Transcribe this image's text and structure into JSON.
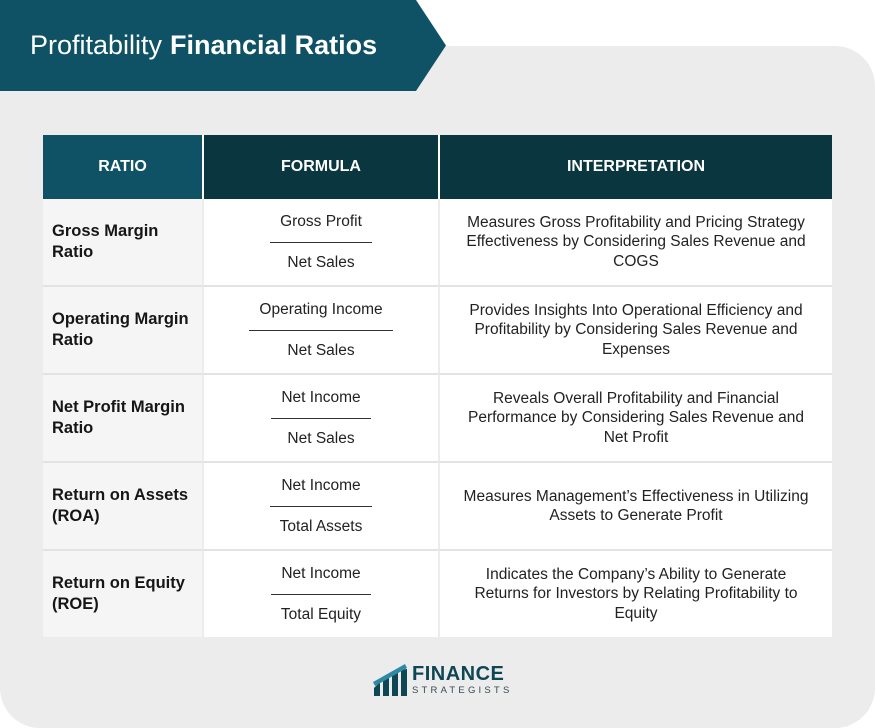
{
  "header": {
    "title_light": "Profitability",
    "title_bold": "Financial Ratios"
  },
  "table": {
    "columns": [
      "RATIO",
      "FORMULA",
      "INTERPRETATION"
    ],
    "rows": [
      {
        "ratio": "Gross Margin Ratio",
        "numerator": "Gross Profit",
        "denominator": "Net Sales",
        "interpretation": "Measures Gross Profitability and Pricing Strategy Effectiveness by Considering Sales Revenue and COGS"
      },
      {
        "ratio": "Operating Margin Ratio",
        "numerator": "Operating Income",
        "denominator": "Net Sales",
        "interpretation": "Provides Insights Into Operational Efficiency and Profitability by Considering Sales Revenue and Expenses"
      },
      {
        "ratio": "Net Profit Margin Ratio",
        "numerator": "Net Income",
        "denominator": "Net Sales",
        "interpretation": "Reveals Overall Profitability and Financial Performance by Considering Sales Revenue and Net Profit"
      },
      {
        "ratio": "Return on Assets (ROA)",
        "numerator": "Net Income",
        "denominator": "Total Assets",
        "interpretation": "Measures Management’s Effectiveness in Utilizing Assets to Generate Profit"
      },
      {
        "ratio": "Return on Equity (ROE)",
        "numerator": "Net Income",
        "denominator": "Total Equity",
        "interpretation": "Indicates the Company’s Ability to Generate Returns for Investors by Relating Profitability to Equity"
      }
    ]
  },
  "logo": {
    "line1": "FINANCE",
    "line2": "STRATEGISTS",
    "icon": "finance-strategists-logo-icon"
  },
  "colors": {
    "banner": "#0f5165",
    "header_dark": "#0a3640",
    "panel": "#ececec"
  }
}
